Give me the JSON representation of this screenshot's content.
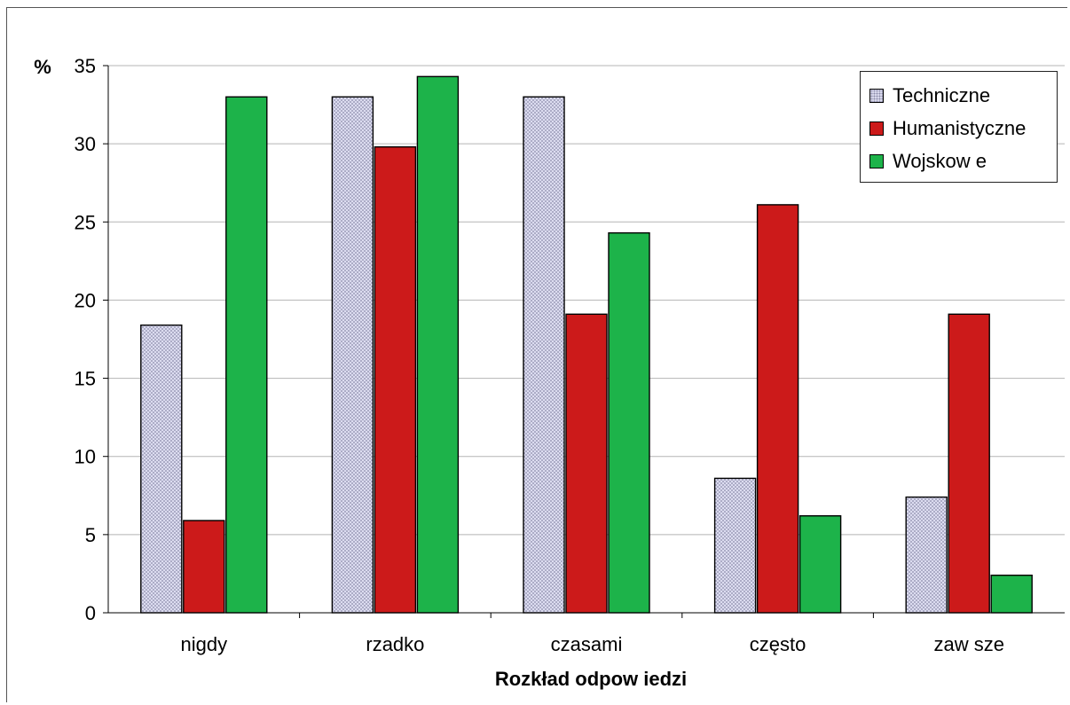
{
  "chart_data": {
    "type": "bar",
    "title": "",
    "xlabel": "Rozkład odpow iedzi",
    "ylabel": "%",
    "ylim": [
      0,
      35
    ],
    "yticks": [
      0,
      5,
      10,
      15,
      20,
      25,
      30,
      35
    ],
    "grid": true,
    "legend_position": "top-right",
    "categories": [
      "nigdy",
      "rzadko",
      "czasami",
      "często",
      "zaw sze"
    ],
    "series": [
      {
        "name": "Techniczne",
        "color": "#d6d6ee",
        "pattern": "dotted",
        "values": [
          18.4,
          33.0,
          33.0,
          8.6,
          7.4
        ]
      },
      {
        "name": "Humanistyczne",
        "color": "#cc1a1a",
        "values": [
          5.9,
          29.8,
          19.1,
          26.1,
          19.1
        ]
      },
      {
        "name": "Wojskow e",
        "color": "#1db34a",
        "values": [
          33.0,
          34.3,
          24.3,
          6.2,
          2.4
        ]
      }
    ]
  }
}
